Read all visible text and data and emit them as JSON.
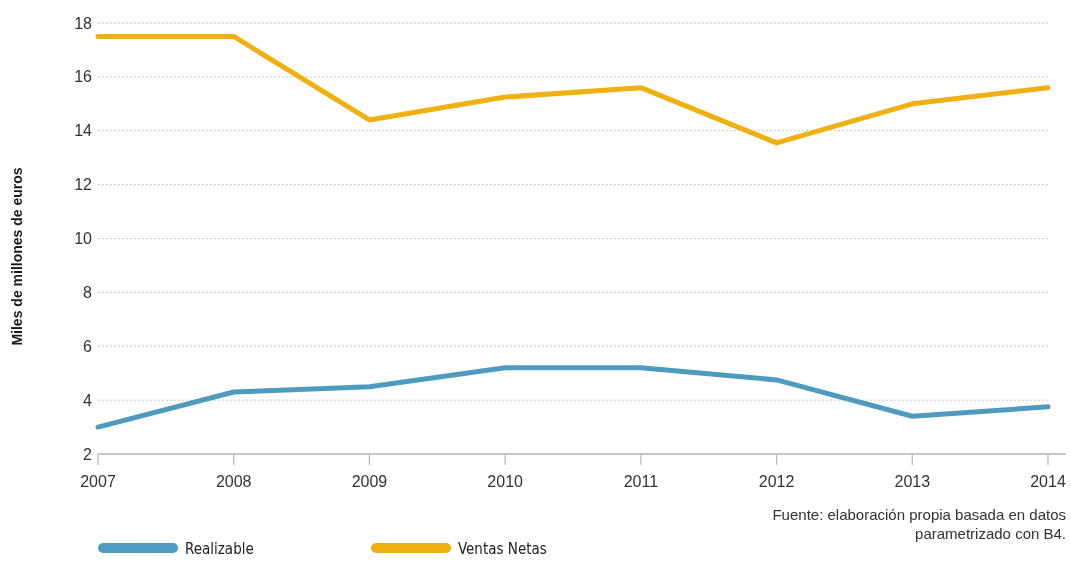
{
  "chart_data": {
    "type": "line",
    "ylabel": "Miles de millones de euros",
    "categories": [
      "2007",
      "2008",
      "2009",
      "2010",
      "2011",
      "2012",
      "2013",
      "2014"
    ],
    "series": [
      {
        "name": "Realizable",
        "color": "#4f9bbf",
        "values": [
          3.0,
          4.3,
          4.5,
          5.2,
          5.2,
          4.75,
          3.4,
          3.75
        ]
      },
      {
        "name": "Ventas Netas",
        "color": "#eeb111",
        "values": [
          17.5,
          17.5,
          14.4,
          15.25,
          15.6,
          13.55,
          15.0,
          15.6
        ]
      }
    ],
    "ylim": [
      2,
      18
    ],
    "yticks": [
      2,
      4,
      6,
      8,
      10,
      12,
      14,
      16,
      18
    ],
    "grid": "y",
    "legend": "bottom",
    "marker": "none",
    "line_style": "solid",
    "annotations": [
      "Fuente: elaboración propia basada en datos\nparametrizado con B4."
    ]
  }
}
